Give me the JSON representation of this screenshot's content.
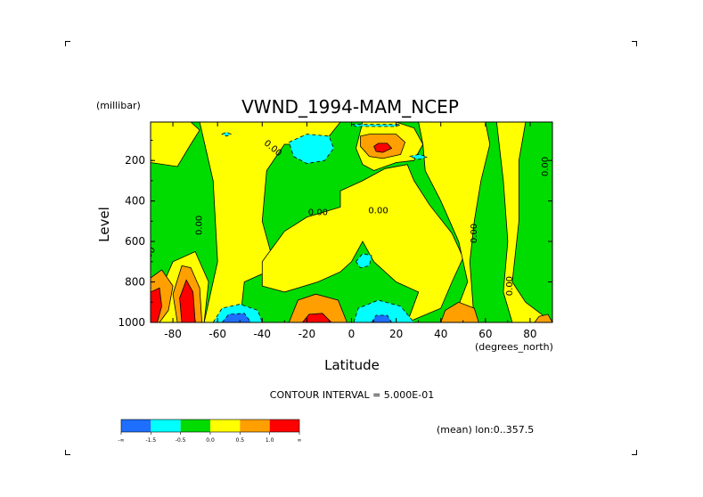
{
  "chart_data": {
    "type": "heatmap",
    "title": "VWND_1994-MAM_NCEP",
    "xlabel": "Latitude",
    "ylabel": "Level",
    "y_unit": "(millibar)",
    "x_unit": "(degrees_north)",
    "xlim": [
      -90,
      90
    ],
    "ylim": [
      1000,
      10
    ],
    "x_ticks": [
      -80,
      -60,
      -40,
      -20,
      0,
      20,
      40,
      60,
      80
    ],
    "y_ticks": [
      200,
      400,
      600,
      800,
      1000
    ],
    "x_tick_labels": [
      "-80",
      "-60",
      "-40",
      "-20",
      "0",
      "20",
      "40",
      "60",
      "80"
    ],
    "y_tick_labels": [
      "200",
      "400",
      "600",
      "800",
      "1000"
    ],
    "contour_interval_text": "CONTOUR INTERVAL = 5.000E-01",
    "average_note": "(mean) lon:0..357.5",
    "contour_labels": [
      "0.00",
      "0.00",
      "0.00",
      "0.00",
      "0.00",
      "0.00",
      "0.00",
      "0.00"
    ],
    "colorbar": {
      "colors": [
        "#1e6eff",
        "#00ffff",
        "#00dc00",
        "#ffff00",
        "#ffa000",
        "#ff0000"
      ],
      "labels": [
        "-∞",
        "-1.5",
        "-0.5",
        "0.0",
        "0.5",
        "1.0",
        "∞"
      ]
    },
    "regions": [
      {
        "level": "pos",
        "color": "#ffff00",
        "points": [
          [
            -90,
            210
          ],
          [
            -78,
            230
          ],
          [
            -72,
            120
          ],
          [
            -68,
            50
          ],
          [
            -72,
            10
          ],
          [
            -90,
            10
          ]
        ]
      },
      {
        "level": "pos",
        "color": "#ffff00",
        "points": [
          [
            -68,
            10
          ],
          [
            -62,
            300
          ],
          [
            -60,
            700
          ],
          [
            -66,
            1000
          ],
          [
            -50,
            1000
          ],
          [
            -48,
            800
          ],
          [
            -40,
            760
          ],
          [
            -35,
            700
          ],
          [
            -40,
            500
          ],
          [
            -38,
            250
          ],
          [
            -30,
            120
          ],
          [
            -20,
            120
          ],
          [
            -10,
            80
          ],
          [
            -5,
            10
          ]
        ]
      },
      {
        "level": "pos",
        "color": "#ffff00",
        "points": [
          [
            -30,
            550
          ],
          [
            -20,
            480
          ],
          [
            -5,
            430
          ],
          [
            -5,
            350
          ],
          [
            5,
            300
          ],
          [
            15,
            240
          ],
          [
            25,
            220
          ],
          [
            28,
            300
          ],
          [
            35,
            420
          ],
          [
            45,
            560
          ],
          [
            50,
            680
          ],
          [
            45,
            800
          ],
          [
            40,
            930
          ],
          [
            25,
            1000
          ],
          [
            30,
            850
          ],
          [
            20,
            800
          ],
          [
            10,
            700
          ],
          [
            5,
            600
          ],
          [
            0,
            700
          ],
          [
            -5,
            750
          ],
          [
            -15,
            800
          ],
          [
            -30,
            850
          ],
          [
            -40,
            820
          ],
          [
            -40,
            700
          ]
        ]
      },
      {
        "level": "pos",
        "color": "#ffff00",
        "points": [
          [
            5,
            10
          ],
          [
            20,
            10
          ],
          [
            28,
            40
          ],
          [
            32,
            120
          ],
          [
            28,
            200
          ],
          [
            20,
            210
          ],
          [
            10,
            250
          ],
          [
            5,
            220
          ],
          [
            2,
            140
          ]
        ]
      },
      {
        "level": "pos",
        "color": "#ffff00",
        "points": [
          [
            30,
            10
          ],
          [
            60,
            10
          ],
          [
            62,
            120
          ],
          [
            58,
            300
          ],
          [
            55,
            500
          ],
          [
            53,
            700
          ],
          [
            55,
            1000
          ],
          [
            45,
            1000
          ],
          [
            52,
            800
          ],
          [
            48,
            600
          ],
          [
            40,
            400
          ],
          [
            33,
            250
          ],
          [
            32,
            120
          ]
        ]
      },
      {
        "level": "pos",
        "color": "#ffff00",
        "points": [
          [
            65,
            10
          ],
          [
            78,
            10
          ],
          [
            75,
            200
          ],
          [
            75,
            500
          ],
          [
            72,
            800
          ],
          [
            78,
            900
          ],
          [
            90,
            1000
          ],
          [
            72,
            1000
          ],
          [
            68,
            850
          ],
          [
            70,
            600
          ],
          [
            68,
            300
          ]
        ]
      },
      {
        "level": "pos",
        "color": "#ffff00",
        "points": [
          [
            -88,
            900
          ],
          [
            -80,
            700
          ],
          [
            -70,
            650
          ],
          [
            -64,
            800
          ],
          [
            -66,
            1000
          ],
          [
            -88,
            1000
          ]
        ]
      },
      {
        "level": "pos",
        "color": "#ffa000",
        "points": [
          [
            -90,
            780
          ],
          [
            -85,
            740
          ],
          [
            -80,
            820
          ],
          [
            -82,
            940
          ],
          [
            -86,
            1000
          ],
          [
            -90,
            1000
          ]
        ]
      },
      {
        "level": "pos",
        "color": "#ffa000",
        "points": [
          [
            -78,
            1000
          ],
          [
            -80,
            860
          ],
          [
            -76,
            720
          ],
          [
            -72,
            730
          ],
          [
            -68,
            830
          ],
          [
            -67,
            1000
          ]
        ]
      },
      {
        "level": "pos",
        "color": "#ff0000",
        "points": [
          [
            -90,
            850
          ],
          [
            -86,
            830
          ],
          [
            -85,
            920
          ],
          [
            -87,
            1000
          ],
          [
            -90,
            1000
          ]
        ]
      },
      {
        "level": "pos",
        "color": "#ff0000",
        "points": [
          [
            -76,
            1000
          ],
          [
            -77,
            880
          ],
          [
            -74,
            790
          ],
          [
            -71,
            850
          ],
          [
            -70,
            1000
          ]
        ]
      },
      {
        "level": "pos",
        "color": "#ffa000",
        "points": [
          [
            -28,
            1000
          ],
          [
            -24,
            890
          ],
          [
            -16,
            860
          ],
          [
            -6,
            890
          ],
          [
            -2,
            1000
          ]
        ]
      },
      {
        "level": "pos",
        "color": "#ff0000",
        "points": [
          [
            -22,
            1000
          ],
          [
            -19,
            960
          ],
          [
            -13,
            955
          ],
          [
            -9,
            1000
          ]
        ]
      },
      {
        "level": "pos",
        "color": "#ffa000",
        "points": [
          [
            4,
            80
          ],
          [
            8,
            70
          ],
          [
            20,
            70
          ],
          [
            24,
            110
          ],
          [
            22,
            170
          ],
          [
            14,
            190
          ],
          [
            8,
            180
          ],
          [
            4,
            130
          ]
        ]
      },
      {
        "level": "pos",
        "color": "#ff0000",
        "points": [
          [
            10,
            130
          ],
          [
            12,
            115
          ],
          [
            16,
            115
          ],
          [
            18,
            140
          ],
          [
            14,
            160
          ],
          [
            11,
            155
          ]
        ]
      },
      {
        "level": "pos",
        "color": "#ffa000",
        "points": [
          [
            40,
            1000
          ],
          [
            42,
            940
          ],
          [
            48,
            900
          ],
          [
            55,
            930
          ],
          [
            57,
            1000
          ]
        ]
      },
      {
        "level": "pos",
        "color": "#ffa000",
        "points": [
          [
            82,
            1000
          ],
          [
            84,
            970
          ],
          [
            88,
            960
          ],
          [
            90,
            1000
          ]
        ]
      },
      {
        "level": "neg",
        "color": "#00ffff",
        "points": [
          [
            -62,
            1000
          ],
          [
            -58,
            930
          ],
          [
            -50,
            910
          ],
          [
            -42,
            940
          ],
          [
            -40,
            1000
          ]
        ]
      },
      {
        "level": "neg",
        "color": "#1e6eff",
        "points": [
          [
            -58,
            1000
          ],
          [
            -55,
            960
          ],
          [
            -48,
            955
          ],
          [
            -45,
            1000
          ]
        ]
      },
      {
        "level": "neg",
        "color": "#00ffff",
        "points": [
          [
            1,
            1000
          ],
          [
            3,
            930
          ],
          [
            12,
            890
          ],
          [
            22,
            920
          ],
          [
            28,
            1000
          ]
        ]
      },
      {
        "level": "neg",
        "color": "#1e6eff",
        "points": [
          [
            9,
            1000
          ],
          [
            11,
            965
          ],
          [
            16,
            965
          ],
          [
            18,
            1000
          ]
        ]
      },
      {
        "level": "neg",
        "color": "#00ffff",
        "points": [
          [
            -28,
            110
          ],
          [
            -20,
            70
          ],
          [
            -10,
            80
          ],
          [
            -8,
            140
          ],
          [
            -12,
            200
          ],
          [
            -20,
            215
          ],
          [
            -26,
            180
          ]
        ]
      },
      {
        "level": "neg",
        "color": "#00ffff",
        "points": [
          [
            26,
            180
          ],
          [
            30,
            170
          ],
          [
            34,
            182
          ],
          [
            30,
            195
          ]
        ]
      },
      {
        "level": "neg",
        "color": "#00ffff",
        "points": [
          [
            2,
            700
          ],
          [
            5,
            660
          ],
          [
            9,
            670
          ],
          [
            8,
            720
          ],
          [
            4,
            730
          ]
        ]
      },
      {
        "level": "neg",
        "color": "#00ffff",
        "points": [
          [
            0,
            22
          ],
          [
            22,
            22
          ],
          [
            20,
            32
          ],
          [
            2,
            32
          ]
        ]
      },
      {
        "level": "neg",
        "color": "#00ffff",
        "points": [
          [
            -58,
            70
          ],
          [
            -56,
            60
          ],
          [
            -54,
            70
          ],
          [
            -56,
            80
          ]
        ]
      }
    ]
  }
}
